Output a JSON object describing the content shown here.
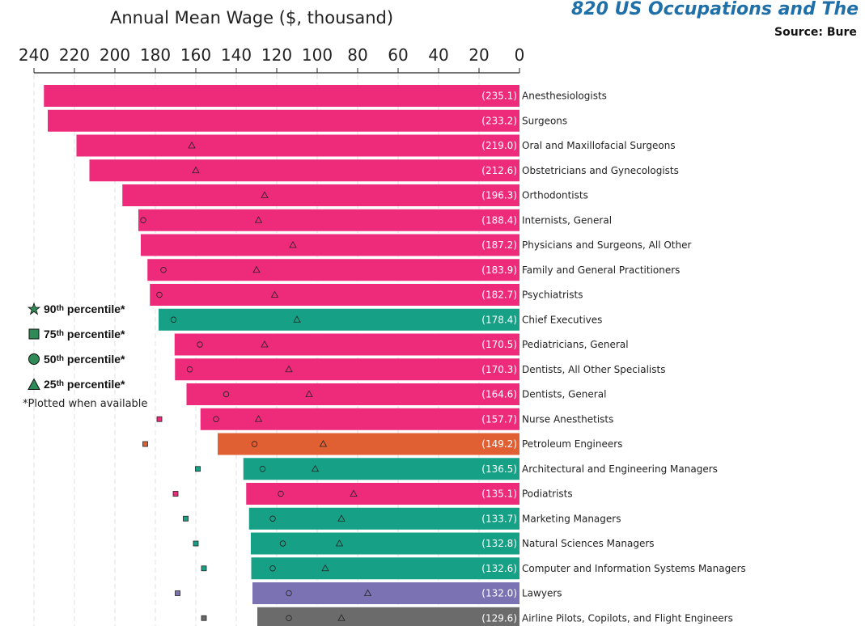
{
  "title": "820 US Occupations and The",
  "subtitle": "Source: Bure",
  "legend": {
    "p90": {
      "ord": "90",
      "suffix": "th",
      "word": " percentile*",
      "color": "#2e8b57"
    },
    "p75": {
      "ord": "75",
      "suffix": "th",
      "word": " percentile*",
      "color": "#2e8b57"
    },
    "p50": {
      "ord": "50",
      "suffix": "th",
      "word": " percentile*",
      "color": "#2e8b57"
    },
    "p25": {
      "ord": "25",
      "suffix": "th",
      "word": " percentile*",
      "color": "#2e8b57"
    },
    "note": "*Plotted when available"
  },
  "colors": {
    "pink": "#ee2a7b",
    "teal": "#16a085",
    "orange": "#e06033",
    "purple": "#7b72b4",
    "gray": "#6b6b6b"
  },
  "chart_data": {
    "type": "bar",
    "orientation": "horizontal",
    "xlabel": "Annual Mean Wage ($, thousand)",
    "xlim": [
      0,
      240
    ],
    "x_reversed": true,
    "ticks": [
      240,
      220,
      200,
      180,
      160,
      140,
      120,
      100,
      80,
      60,
      40,
      20,
      0
    ],
    "gridlines": "vertical dashed",
    "series": [
      {
        "name": "Annual mean wage",
        "type": "bar"
      },
      {
        "name": "75th percentile",
        "type": "square-marker"
      },
      {
        "name": "50th percentile",
        "type": "circle-marker"
      },
      {
        "name": "25th percentile",
        "type": "triangle-marker"
      }
    ],
    "occupations": [
      {
        "name": "Anesthesiologists",
        "value": 235.1,
        "label": "(235.1)",
        "group": "pink",
        "p25": null,
        "p50": null,
        "p75": null
      },
      {
        "name": "Surgeons",
        "value": 233.2,
        "label": "(233.2)",
        "group": "pink",
        "p25": null,
        "p50": null,
        "p75": null
      },
      {
        "name": "Oral and Maxillofacial Surgeons",
        "value": 219.0,
        "label": "(219.0)",
        "group": "pink",
        "p25": 162,
        "p50": null,
        "p75": null
      },
      {
        "name": "Obstetricians and Gynecologists",
        "value": 212.6,
        "label": "(212.6)",
        "group": "pink",
        "p25": 160,
        "p50": null,
        "p75": null
      },
      {
        "name": "Orthodontists",
        "value": 196.3,
        "label": "(196.3)",
        "group": "pink",
        "p25": 126,
        "p50": null,
        "p75": null
      },
      {
        "name": "Internists, General",
        "value": 188.4,
        "label": "(188.4)",
        "group": "pink",
        "p25": 129,
        "p50": 186,
        "p75": null
      },
      {
        "name": "Physicians and Surgeons, All Other",
        "value": 187.2,
        "label": "(187.2)",
        "group": "pink",
        "p25": 112,
        "p50": null,
        "p75": null
      },
      {
        "name": "Family and General Practitioners",
        "value": 183.9,
        "label": "(183.9)",
        "group": "pink",
        "p25": 130,
        "p50": 176,
        "p75": null
      },
      {
        "name": "Psychiatrists",
        "value": 182.7,
        "label": "(182.7)",
        "group": "pink",
        "p25": 121,
        "p50": 178,
        "p75": null
      },
      {
        "name": "Chief Executives",
        "value": 178.4,
        "label": "(178.4)",
        "group": "teal",
        "p25": 110,
        "p50": 171,
        "p75": null
      },
      {
        "name": "Pediatricians, General",
        "value": 170.5,
        "label": "(170.5)",
        "group": "pink",
        "p25": 126,
        "p50": 158,
        "p75": null
      },
      {
        "name": "Dentists, All Other Specialists",
        "value": 170.3,
        "label": "(170.3)",
        "group": "pink",
        "p25": 114,
        "p50": 163,
        "p75": null
      },
      {
        "name": "Dentists, General",
        "value": 164.6,
        "label": "(164.6)",
        "group": "pink",
        "p25": 104,
        "p50": 145,
        "p75": null
      },
      {
        "name": "Nurse Anesthetists",
        "value": 157.7,
        "label": "(157.7)",
        "group": "pink",
        "p25": 129,
        "p50": 150,
        "p75": 178
      },
      {
        "name": "Petroleum Engineers",
        "value": 149.2,
        "label": "(149.2)",
        "group": "orange",
        "p25": 97,
        "p50": 131,
        "p75": 185
      },
      {
        "name": "Architectural and Engineering Managers",
        "value": 136.5,
        "label": "(136.5)",
        "group": "teal",
        "p25": 101,
        "p50": 127,
        "p75": 159
      },
      {
        "name": "Podiatrists",
        "value": 135.1,
        "label": "(135.1)",
        "group": "pink",
        "p25": 82,
        "p50": 118,
        "p75": 170
      },
      {
        "name": "Marketing Managers",
        "value": 133.7,
        "label": "(133.7)",
        "group": "teal",
        "p25": 88,
        "p50": 122,
        "p75": 165
      },
      {
        "name": "Natural Sciences Managers",
        "value": 132.8,
        "label": "(132.8)",
        "group": "teal",
        "p25": 89,
        "p50": 117,
        "p75": 160
      },
      {
        "name": "Computer and Information Systems Managers",
        "value": 132.6,
        "label": "(132.6)",
        "group": "teal",
        "p25": 96,
        "p50": 122,
        "p75": 156
      },
      {
        "name": "Lawyers",
        "value": 132.0,
        "label": "(132.0)",
        "group": "purple",
        "p25": 75,
        "p50": 114,
        "p75": 169
      },
      {
        "name": "Airline Pilots, Copilots, and Flight Engineers",
        "value": 129.6,
        "label": "(129.6)",
        "group": "gray",
        "p25": 88,
        "p50": 114,
        "p75": 156
      }
    ]
  }
}
